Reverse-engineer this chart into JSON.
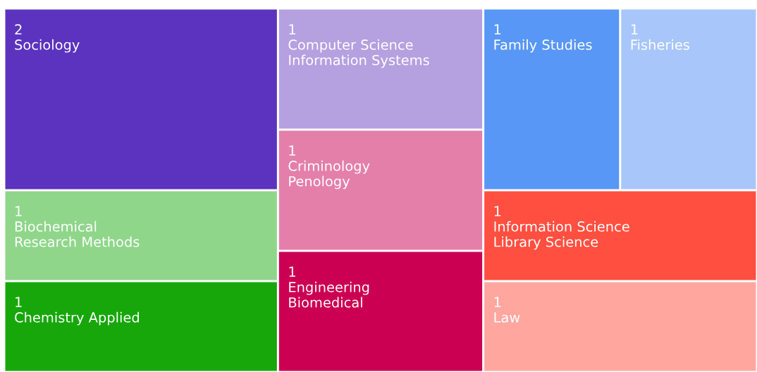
{
  "chart_data": {
    "type": "other",
    "categories": [
      "Sociology",
      "Biochemical\nResearch Methods",
      "Chemistry Applied",
      "Computer Science\nInformation Systems",
      "Criminology\nPenology",
      "Engineering\nBiomedical",
      "Family Studies",
      "Fisheries",
      "Information Science\nLibrary Science",
      "Law"
    ],
    "values": [
      2,
      1,
      1,
      1,
      1,
      1,
      1,
      1,
      1,
      1
    ],
    "colors": [
      "#5c33be",
      "#8fd68a",
      "#17a70b",
      "#b5a0e0",
      "#e47faa",
      "#cc0052",
      "#5897f5",
      "#a8c6fa",
      "#ff4f40",
      "#ffa79f"
    ],
    "data_labels": true
  }
}
